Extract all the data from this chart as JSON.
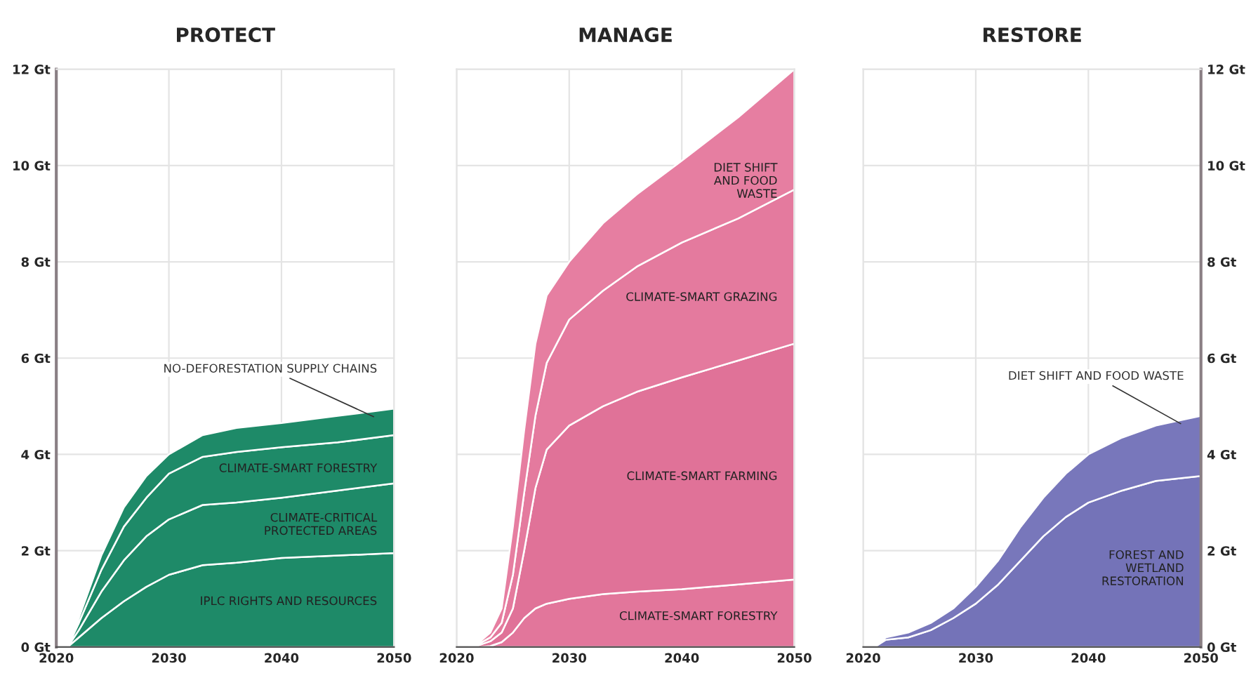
{
  "chart_data": [
    {
      "type": "area",
      "title": "PROTECT",
      "stacked": true,
      "grid": true,
      "x": [
        2020,
        2021,
        2022,
        2024,
        2026,
        2028,
        2030,
        2033,
        2036,
        2040,
        2045,
        2050
      ],
      "series": [
        {
          "name": "IPLC RIGHTS AND RESOURCES",
          "color": "#1e8a68",
          "values": [
            0,
            0,
            0.2,
            0.6,
            0.95,
            1.25,
            1.5,
            1.7,
            1.75,
            1.85,
            1.9,
            1.95
          ]
        },
        {
          "name": "CLIMATE-CRITICAL\nPROTECTED AREAS",
          "color": "#1e8a68",
          "values": [
            0,
            0,
            0.15,
            0.55,
            0.85,
            1.05,
            1.15,
            1.25,
            1.25,
            1.25,
            1.35,
            1.45
          ]
        },
        {
          "name": "CLIMATE-SMART FORESTRY",
          "color": "#1e8a68",
          "values": [
            0,
            0,
            0.15,
            0.45,
            0.7,
            0.8,
            0.95,
            1.0,
            1.05,
            1.05,
            1.0,
            1.0
          ]
        },
        {
          "name": "NO-DEFORESTATION SUPPLY CHAINS",
          "color": "#1e8a68",
          "values": [
            0,
            0,
            0.1,
            0.3,
            0.4,
            0.45,
            0.4,
            0.45,
            0.5,
            0.5,
            0.55,
            0.55
          ]
        }
      ],
      "xlim": [
        2020,
        2050
      ],
      "xticks": [
        2020,
        2030,
        2040,
        2050
      ],
      "ylim": [
        0,
        12
      ],
      "yticks": [
        {
          "value": 0,
          "label": "0 Gt"
        },
        {
          "value": 2,
          "label": "2 Gt"
        },
        {
          "value": 4,
          "label": "4 Gt"
        },
        {
          "value": 6,
          "label": "6 Gt"
        },
        {
          "value": 8,
          "label": "8 Gt"
        },
        {
          "value": 10,
          "label": "10 Gt"
        },
        {
          "value": 12,
          "label": "12 Gt"
        }
      ]
    },
    {
      "type": "area",
      "title": "MANAGE",
      "stacked": true,
      "grid": true,
      "tick_labels": "x",
      "x": [
        2020,
        2021,
        2022,
        2023,
        2024,
        2025,
        2026,
        2027,
        2028,
        2030,
        2033,
        2036,
        2040,
        2045,
        2050
      ],
      "series": [
        {
          "name": "CLIMATE-SMART FORESTRY",
          "color": "#e2769b",
          "values": [
            0,
            0,
            0,
            0.02,
            0.1,
            0.3,
            0.6,
            0.8,
            0.9,
            1.0,
            1.1,
            1.15,
            1.2,
            1.3,
            1.4
          ]
        },
        {
          "name": "CLIMATE-SMART FARMING",
          "color": "#e07298",
          "values": [
            0,
            0,
            0.04,
            0.1,
            0.2,
            0.5,
            1.4,
            2.5,
            3.2,
            3.6,
            3.9,
            4.15,
            4.4,
            4.65,
            4.9
          ]
        },
        {
          "name": "CLIMATE-SMART GRAZING",
          "color": "#e47a9e",
          "values": [
            0,
            0,
            0.03,
            0.08,
            0.2,
            0.7,
            1.2,
            1.5,
            1.8,
            2.2,
            2.4,
            2.6,
            2.8,
            2.95,
            3.2
          ]
        },
        {
          "name": "DIET SHIFT\nAND FOOD\nWASTE",
          "color": "#e67ea1",
          "values": [
            0,
            0,
            0.03,
            0.1,
            0.3,
            1.0,
            1.3,
            1.5,
            1.4,
            1.2,
            1.4,
            1.5,
            1.7,
            2.1,
            2.5
          ]
        }
      ],
      "xlim": [
        2020,
        2050
      ],
      "xticks": [
        2020,
        2030,
        2040,
        2050
      ],
      "ylim": [
        0,
        12
      ]
    },
    {
      "type": "area",
      "title": "RESTORE",
      "stacked": true,
      "grid": true,
      "x": [
        2020,
        2021,
        2022,
        2024,
        2026,
        2028,
        2030,
        2032,
        2034,
        2036,
        2038,
        2040,
        2043,
        2046,
        2050
      ],
      "series": [
        {
          "name": "FOREST AND\nWETLAND\nRESTORATION",
          "color": "#7473b8",
          "axis": "y2",
          "values": [
            0,
            0,
            0.15,
            0.2,
            0.35,
            0.6,
            0.9,
            1.3,
            1.8,
            2.3,
            2.7,
            3.0,
            3.25,
            3.45,
            3.55
          ]
        },
        {
          "name": "DIET SHIFT AND FOOD WASTE",
          "color": "#7877bb",
          "axis": "y2",
          "values": [
            0,
            0,
            0.05,
            0.1,
            0.15,
            0.2,
            0.35,
            0.5,
            0.7,
            0.8,
            0.9,
            1.0,
            1.1,
            1.15,
            1.25
          ]
        }
      ],
      "xlim": [
        2020,
        2050
      ],
      "xticks": [
        2020,
        2030,
        2040,
        2050
      ],
      "y2lim": [
        0,
        12
      ],
      "y2ticks": [
        {
          "value": 0,
          "label": "0 Gt"
        },
        {
          "value": 2,
          "label": "2 Gt"
        },
        {
          "value": 4,
          "label": "4 Gt"
        },
        {
          "value": 6,
          "label": "6 Gt"
        },
        {
          "value": 8,
          "label": "8 Gt"
        },
        {
          "value": 10,
          "label": "10 Gt"
        },
        {
          "value": 12,
          "label": "12 Gt"
        }
      ]
    }
  ]
}
